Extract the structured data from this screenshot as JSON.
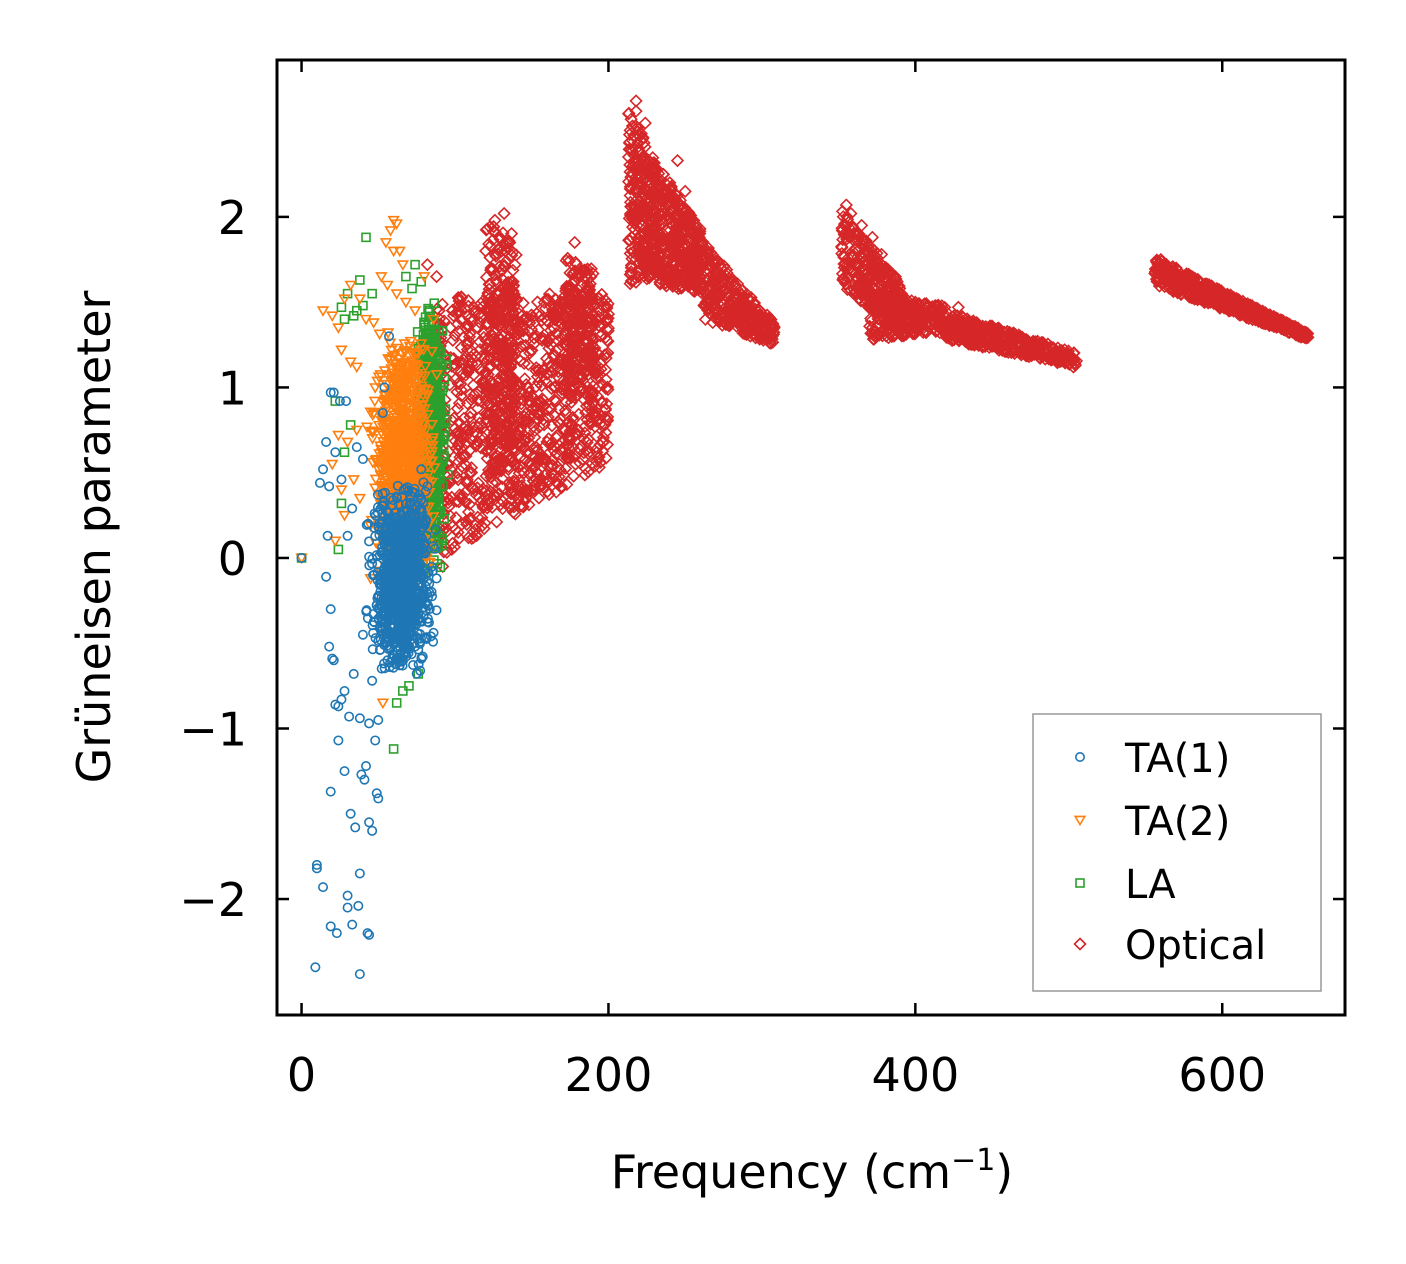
{
  "chart_data": {
    "type": "scatter",
    "title": "",
    "xlabel_main": "Frequency (cm",
    "xlabel_sup": "−1",
    "xlabel_close": ")",
    "ylabel": "Grüneisen parameter",
    "xlim": [
      -16,
      680
    ],
    "ylim": [
      -2.68,
      2.92
    ],
    "x_ticks": [
      0,
      200,
      400,
      600
    ],
    "x_tick_labels": [
      "0",
      "200",
      "400",
      "600"
    ],
    "y_ticks": [
      -2,
      -1,
      0,
      1,
      2
    ],
    "y_tick_labels": [
      "−2",
      "−1",
      "0",
      "1",
      "2"
    ],
    "grid": false,
    "legend_position": "lower-right",
    "series": [
      {
        "name": "TA(1)",
        "marker": "circle",
        "color": "#1f77b4",
        "points": [
          [
            0,
            0
          ],
          [
            9,
            -2.4
          ],
          [
            10,
            -1.8
          ],
          [
            10,
            -1.82
          ],
          [
            14,
            -1.93
          ],
          [
            19,
            -2.16
          ],
          [
            23,
            -2.2
          ],
          [
            30,
            -1.98
          ],
          [
            30,
            -2.05
          ],
          [
            33,
            -2.15
          ],
          [
            37,
            -2.04
          ],
          [
            38,
            -2.44
          ],
          [
            43,
            -2.2
          ],
          [
            44,
            -2.21
          ],
          [
            19,
            -1.37
          ],
          [
            24,
            -1.07
          ],
          [
            28,
            -1.25
          ],
          [
            32,
            -1.5
          ],
          [
            35,
            -1.58
          ],
          [
            38,
            -1.85
          ],
          [
            39,
            -1.27
          ],
          [
            41,
            -1.3
          ],
          [
            42,
            -1.22
          ],
          [
            44,
            -1.55
          ],
          [
            46,
            -1.6
          ],
          [
            49,
            -1.38
          ],
          [
            50,
            -1.41
          ],
          [
            16,
            0.68
          ],
          [
            19,
            0.97
          ],
          [
            21,
            0.97
          ],
          [
            25,
            0.92
          ],
          [
            29,
            0.92
          ],
          [
            12,
            0.44
          ],
          [
            14,
            0.52
          ],
          [
            18,
            0.42
          ],
          [
            22,
            0.62
          ],
          [
            26,
            0.46
          ],
          [
            17,
            0.13
          ],
          [
            19,
            -0.3
          ],
          [
            21,
            -0.6
          ],
          [
            24,
            -0.87
          ],
          [
            28,
            -0.78
          ],
          [
            31,
            -0.93
          ],
          [
            34,
            -0.68
          ],
          [
            16,
            -0.11
          ],
          [
            18,
            -0.52
          ],
          [
            20,
            -0.59
          ],
          [
            22,
            -0.86
          ],
          [
            26,
            -0.83
          ],
          [
            38,
            -0.94
          ],
          [
            44,
            -0.97
          ],
          [
            48,
            -1.07
          ],
          [
            53,
            0.85
          ],
          [
            57,
            1.3
          ],
          [
            54,
            1.0
          ],
          [
            40,
            0.58
          ],
          [
            36,
            0.65
          ],
          [
            30,
            0.13
          ],
          [
            33,
            0.29
          ],
          [
            40,
            -0.45
          ],
          [
            46,
            -0.72
          ],
          [
            50,
            -0.95
          ],
          [
            78,
            0.52
          ],
          [
            82,
            0.42
          ],
          [
            88,
            -0.12
          ],
          [
            74,
            -0.52
          ],
          [
            70,
            -0.43
          ],
          [
            64,
            -0.63
          ]
        ],
        "cluster": {
          "x_min": 40,
          "x_max": 90,
          "y_min": -0.7,
          "y_max": 0.45,
          "n": 1100,
          "seed": 11
        }
      },
      {
        "name": "TA(2)",
        "marker": "triangle-down",
        "color": "#ff7f0e",
        "points": [
          [
            0,
            0
          ],
          [
            60,
            1.98
          ],
          [
            62,
            1.96
          ],
          [
            58,
            1.92
          ],
          [
            55,
            1.85
          ],
          [
            60,
            1.8
          ],
          [
            64,
            1.8
          ],
          [
            66,
            1.72
          ],
          [
            52,
            1.65
          ],
          [
            56,
            1.6
          ],
          [
            62,
            1.55
          ],
          [
            68,
            1.5
          ],
          [
            74,
            1.45
          ],
          [
            80,
            1.65
          ],
          [
            86,
            1.4
          ],
          [
            14,
            1.45
          ],
          [
            20,
            1.42
          ],
          [
            24,
            1.35
          ],
          [
            28,
            1.52
          ],
          [
            32,
            1.6
          ],
          [
            38,
            1.52
          ],
          [
            42,
            1.4
          ],
          [
            47,
            1.38
          ],
          [
            26,
            1.22
          ],
          [
            32,
            1.15
          ],
          [
            36,
            1.12
          ],
          [
            24,
            0.72
          ],
          [
            30,
            0.68
          ],
          [
            36,
            0.75
          ],
          [
            20,
            0.55
          ],
          [
            26,
            0.4
          ],
          [
            22,
            0.1
          ],
          [
            28,
            0.25
          ],
          [
            34,
            0.46
          ],
          [
            38,
            0.35
          ],
          [
            45,
            -0.12
          ],
          [
            53,
            -0.85
          ]
        ],
        "cluster": {
          "x_min": 40,
          "x_max": 92,
          "y_min": -0.2,
          "y_max": 1.35,
          "n": 900,
          "seed": 23
        }
      },
      {
        "name": "LA",
        "marker": "square",
        "color": "#2ca02c",
        "points": [
          [
            0,
            0
          ],
          [
            42,
            1.88
          ],
          [
            46,
            1.55
          ],
          [
            38,
            1.63
          ],
          [
            36,
            1.45
          ],
          [
            30,
            1.55
          ],
          [
            26,
            1.47
          ],
          [
            28,
            1.4
          ],
          [
            34,
            1.42
          ],
          [
            40,
            1.48
          ],
          [
            22,
            0.92
          ],
          [
            32,
            0.78
          ],
          [
            28,
            0.62
          ],
          [
            26,
            0.32
          ],
          [
            24,
            0.05
          ],
          [
            60,
            -1.12
          ],
          [
            62,
            -0.85
          ],
          [
            66,
            -0.78
          ],
          [
            70,
            -0.75
          ],
          [
            76,
            -0.68
          ],
          [
            78,
            1.62
          ],
          [
            72,
            1.58
          ],
          [
            68,
            1.65
          ],
          [
            74,
            1.72
          ]
        ],
        "cluster": {
          "x_min": 70,
          "x_max": 97,
          "y_min": -0.1,
          "y_max": 1.55,
          "n": 650,
          "seed": 37
        }
      },
      {
        "name": "Optical",
        "marker": "diamond",
        "color": "#d62728",
        "points": [
          [
            82,
            1.72
          ],
          [
            88,
            1.65
          ],
          [
            97,
            1.35
          ],
          [
            218,
            2.68
          ],
          [
            245,
            2.33
          ],
          [
            240,
            2.2
          ],
          [
            250,
            2.15
          ],
          [
            218,
            2.62
          ],
          [
            224,
            2.55
          ],
          [
            355,
            2.07
          ],
          [
            358,
            2.02
          ],
          [
            365,
            1.95
          ],
          [
            372,
            1.88
          ],
          [
            378,
            1.78
          ],
          [
            385,
            1.62
          ],
          [
            392,
            1.52
          ],
          [
            398,
            1.45
          ],
          [
            410,
            1.42
          ],
          [
            428,
            1.47
          ],
          [
            440,
            1.38
          ],
          [
            450,
            1.36
          ],
          [
            462,
            1.3
          ],
          [
            472,
            1.28
          ],
          [
            485,
            1.22
          ],
          [
            498,
            1.15
          ],
          [
            503,
            1.12
          ],
          [
            478,
            1.2
          ],
          [
            455,
            1.25
          ],
          [
            430,
            1.3
          ],
          [
            405,
            1.38
          ],
          [
            385,
            1.38
          ],
          [
            378,
            1.45
          ],
          [
            372,
            1.35
          ],
          [
            560,
            1.75
          ],
          [
            570,
            1.7
          ],
          [
            580,
            1.62
          ],
          [
            590,
            1.57
          ],
          [
            600,
            1.53
          ],
          [
            610,
            1.48
          ],
          [
            620,
            1.43
          ],
          [
            630,
            1.38
          ],
          [
            640,
            1.34
          ],
          [
            650,
            1.3
          ],
          [
            655,
            1.29
          ],
          [
            645,
            1.33
          ],
          [
            625,
            1.4
          ],
          [
            605,
            1.45
          ],
          [
            585,
            1.52
          ],
          [
            565,
            1.62
          ],
          [
            300,
            1.3
          ],
          [
            308,
            1.35
          ],
          [
            285,
            1.45
          ],
          [
            270,
            1.6
          ],
          [
            262,
            1.75
          ],
          [
            178,
            1.85
          ],
          [
            185,
            1.65
          ],
          [
            195,
            1.45
          ],
          [
            200,
            1.43
          ],
          [
            132,
            2.02
          ],
          [
            126,
            1.98
          ],
          [
            120,
            1.8
          ],
          [
            108,
            1.25
          ],
          [
            145,
            0.5
          ],
          [
            158,
            0.65
          ],
          [
            112,
            0.12
          ],
          [
            102,
            0.15
          ],
          [
            92,
            -0.05
          ],
          [
            86,
            0.32
          ]
        ],
        "bands": [
          {
            "x0": 88,
            "x1": 200,
            "lo0": 0.0,
            "lo1": 0.55,
            "hi0": 1.55,
            "hi1": 1.55,
            "n": 1100,
            "seed": 51
          },
          {
            "x0": 120,
            "x1": 140,
            "lo0": 0.5,
            "lo1": 0.5,
            "hi0": 1.95,
            "hi1": 1.95,
            "n": 250,
            "seed": 52
          },
          {
            "x0": 172,
            "x1": 190,
            "lo0": 0.9,
            "lo1": 1.2,
            "hi0": 1.8,
            "hi1": 1.7,
            "n": 180,
            "seed": 53
          },
          {
            "x0": 213,
            "x1": 232,
            "lo0": 1.6,
            "lo1": 1.65,
            "hi0": 2.65,
            "hi1": 2.3,
            "n": 320,
            "seed": 54
          },
          {
            "x0": 232,
            "x1": 262,
            "lo0": 1.6,
            "lo1": 1.55,
            "hi0": 2.3,
            "hi1": 1.9,
            "n": 380,
            "seed": 55
          },
          {
            "x0": 262,
            "x1": 308,
            "lo0": 1.4,
            "lo1": 1.25,
            "hi0": 1.85,
            "hi1": 1.38,
            "n": 320,
            "seed": 56
          },
          {
            "x0": 352,
            "x1": 392,
            "lo0": 1.6,
            "lo1": 1.3,
            "hi0": 2.05,
            "hi1": 1.6,
            "n": 300,
            "seed": 57
          },
          {
            "x0": 370,
            "x1": 420,
            "lo0": 1.28,
            "lo1": 1.32,
            "hi0": 1.55,
            "hi1": 1.48,
            "n": 250,
            "seed": 58
          },
          {
            "x0": 420,
            "x1": 505,
            "lo0": 1.28,
            "lo1": 1.12,
            "hi0": 1.45,
            "hi1": 1.2,
            "n": 420,
            "seed": 59
          },
          {
            "x0": 556,
            "x1": 656,
            "lo0": 1.6,
            "lo1": 1.28,
            "hi0": 1.76,
            "hi1": 1.32,
            "n": 560,
            "seed": 60
          }
        ]
      }
    ]
  }
}
